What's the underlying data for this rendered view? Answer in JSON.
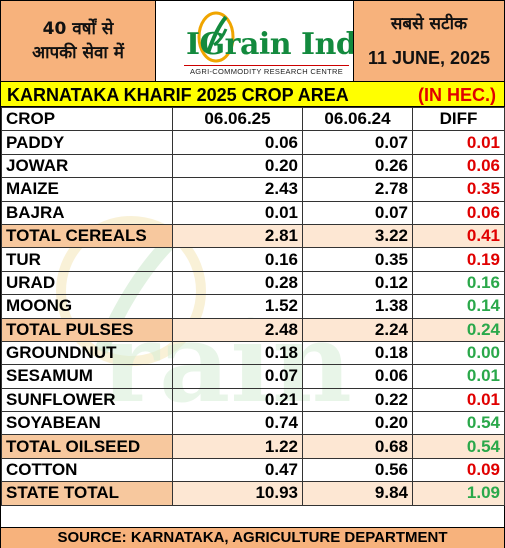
{
  "header": {
    "left_line1": "40 वर्षों से",
    "left_line2": "आपकी सेवा में",
    "logo_text": "IGrain India",
    "logo_subtitle": "AGRI-COMMODITY RESEARCH CENTRE",
    "right_line1": "सबसे सटीक",
    "date": "11 JUNE, 2025"
  },
  "title": {
    "main": "KARNATAKA KHARIF 2025 CROP AREA",
    "unit": "(IN HEC.)"
  },
  "columns": [
    "CROP",
    "06.06.25",
    "06.06.24",
    "DIFF"
  ],
  "rows": [
    {
      "crop": "PADDY",
      "y2025": "0.06",
      "y2024": "0.07",
      "diff": "0.01",
      "sign": "neg",
      "total": false
    },
    {
      "crop": "JOWAR",
      "y2025": "0.20",
      "y2024": "0.26",
      "diff": "0.06",
      "sign": "neg",
      "total": false
    },
    {
      "crop": "MAIZE",
      "y2025": "2.43",
      "y2024": "2.78",
      "diff": "0.35",
      "sign": "neg",
      "total": false
    },
    {
      "crop": "BAJRA",
      "y2025": "0.01",
      "y2024": "0.07",
      "diff": "0.06",
      "sign": "neg",
      "total": false
    },
    {
      "crop": "TOTAL CEREALS",
      "y2025": "2.81",
      "y2024": "3.22",
      "diff": "0.41",
      "sign": "neg",
      "total": true
    },
    {
      "crop": "TUR",
      "y2025": "0.16",
      "y2024": "0.35",
      "diff": "0.19",
      "sign": "neg",
      "total": false
    },
    {
      "crop": "URAD",
      "y2025": "0.28",
      "y2024": "0.12",
      "diff": "0.16",
      "sign": "pos",
      "total": false
    },
    {
      "crop": "MOONG",
      "y2025": "1.52",
      "y2024": "1.38",
      "diff": "0.14",
      "sign": "pos",
      "total": false
    },
    {
      "crop": "TOTAL PULSES",
      "y2025": "2.48",
      "y2024": "2.24",
      "diff": "0.24",
      "sign": "pos",
      "total": true
    },
    {
      "crop": "GROUNDNUT",
      "y2025": "0.18",
      "y2024": "0.18",
      "diff": "0.00",
      "sign": "pos",
      "total": false
    },
    {
      "crop": "SESAMUM",
      "y2025": "0.07",
      "y2024": "0.06",
      "diff": "0.01",
      "sign": "pos",
      "total": false
    },
    {
      "crop": "SUNFLOWER",
      "y2025": "0.21",
      "y2024": "0.22",
      "diff": "0.01",
      "sign": "neg",
      "total": false
    },
    {
      "crop": "SOYABEAN",
      "y2025": "0.74",
      "y2024": "0.20",
      "diff": "0.54",
      "sign": "pos",
      "total": false
    },
    {
      "crop": "TOTAL OILSEED",
      "y2025": "1.22",
      "y2024": "0.68",
      "diff": "0.54",
      "sign": "pos",
      "total": true
    },
    {
      "crop": "COTTON",
      "y2025": "0.47",
      "y2024": "0.56",
      "diff": "0.09",
      "sign": "neg",
      "total": false
    },
    {
      "crop": "STATE TOTAL",
      "y2025": "10.93",
      "y2024": "9.84",
      "diff": "1.09",
      "sign": "pos",
      "total": true
    }
  ],
  "source": "SOURCE: KARNATAKA, AGRICULTURE DEPARTMENT",
  "colors": {
    "header_bg": "#f7b27c",
    "title_bg": "#ffff00",
    "negative": "#e00000",
    "positive": "#2aa84a",
    "brand_green": "#138a3e"
  }
}
